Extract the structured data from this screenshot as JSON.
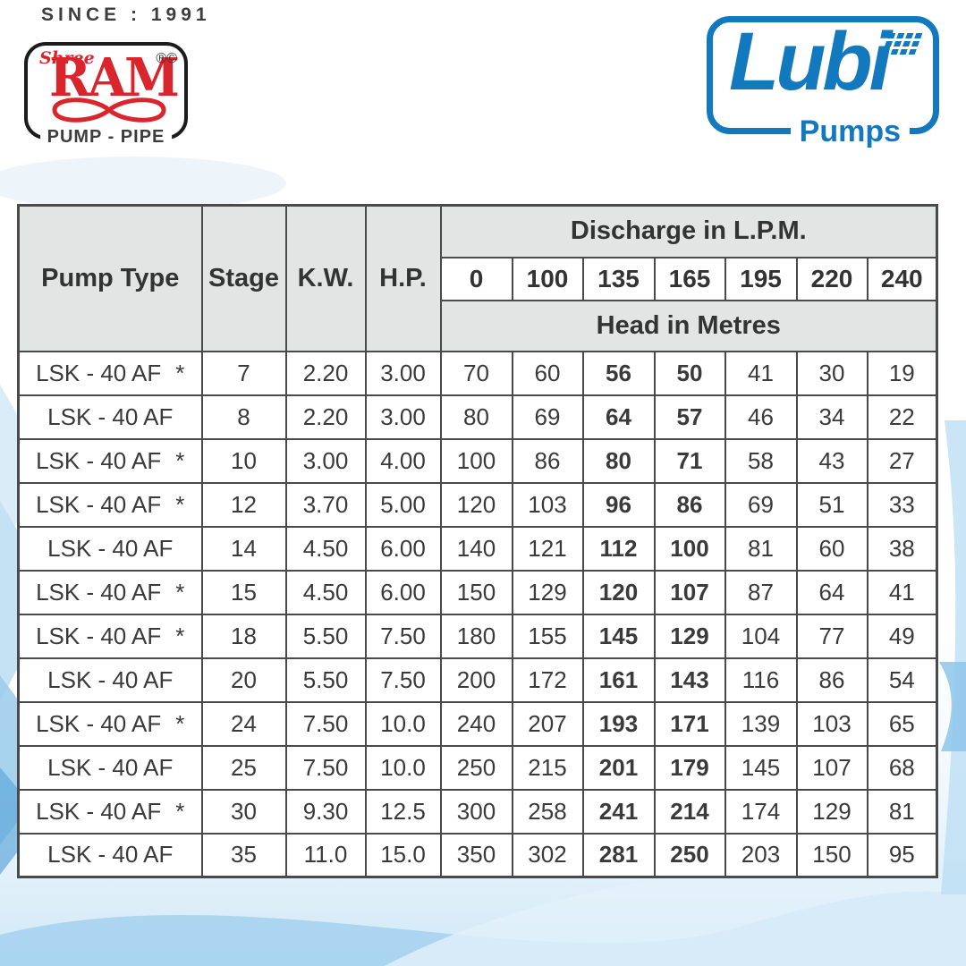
{
  "branding": {
    "since_text": "SINCE : 1991",
    "shree_ram": {
      "prefix": "Shree",
      "name": "RAM",
      "marks": "®©",
      "tagline": "PUMP - PIPE",
      "red": "#d9252c"
    },
    "lubi": {
      "name": "Lubi",
      "tagline": "Pumps",
      "blue": "#1279be"
    }
  },
  "table": {
    "columns": [
      "Pump Type",
      "Stage",
      "K.W.",
      "H.P."
    ],
    "discharge_header": "Discharge in L.P.M.",
    "discharge_values": [
      "0",
      "100",
      "135",
      "165",
      "195",
      "220",
      "240"
    ],
    "head_header": "Head in Metres",
    "emphasized_discharge_indices": [
      2,
      3
    ],
    "rows": [
      {
        "pump_type": "LSK - 40 AF",
        "starred": true,
        "stage": "7",
        "kw": "2.20",
        "hp": "3.00",
        "heads": [
          "70",
          "60",
          "56",
          "50",
          "41",
          "30",
          "19"
        ]
      },
      {
        "pump_type": "LSK - 40 AF",
        "starred": false,
        "stage": "8",
        "kw": "2.20",
        "hp": "3.00",
        "heads": [
          "80",
          "69",
          "64",
          "57",
          "46",
          "34",
          "22"
        ]
      },
      {
        "pump_type": "LSK - 40 AF",
        "starred": true,
        "stage": "10",
        "kw": "3.00",
        "hp": "4.00",
        "heads": [
          "100",
          "86",
          "80",
          "71",
          "58",
          "43",
          "27"
        ]
      },
      {
        "pump_type": "LSK - 40 AF",
        "starred": true,
        "stage": "12",
        "kw": "3.70",
        "hp": "5.00",
        "heads": [
          "120",
          "103",
          "96",
          "86",
          "69",
          "51",
          "33"
        ]
      },
      {
        "pump_type": "LSK - 40 AF",
        "starred": false,
        "stage": "14",
        "kw": "4.50",
        "hp": "6.00",
        "heads": [
          "140",
          "121",
          "112",
          "100",
          "81",
          "60",
          "38"
        ]
      },
      {
        "pump_type": "LSK - 40 AF",
        "starred": true,
        "stage": "15",
        "kw": "4.50",
        "hp": "6.00",
        "heads": [
          "150",
          "129",
          "120",
          "107",
          "87",
          "64",
          "41"
        ]
      },
      {
        "pump_type": "LSK - 40 AF",
        "starred": true,
        "stage": "18",
        "kw": "5.50",
        "hp": "7.50",
        "heads": [
          "180",
          "155",
          "145",
          "129",
          "104",
          "77",
          "49"
        ]
      },
      {
        "pump_type": "LSK - 40 AF",
        "starred": false,
        "stage": "20",
        "kw": "5.50",
        "hp": "7.50",
        "heads": [
          "200",
          "172",
          "161",
          "143",
          "116",
          "86",
          "54"
        ]
      },
      {
        "pump_type": "LSK - 40 AF",
        "starred": true,
        "stage": "24",
        "kw": "7.50",
        "hp": "10.0",
        "heads": [
          "240",
          "207",
          "193",
          "171",
          "139",
          "103",
          "65"
        ]
      },
      {
        "pump_type": "LSK - 40 AF",
        "starred": false,
        "stage": "25",
        "kw": "7.50",
        "hp": "10.0",
        "heads": [
          "250",
          "215",
          "201",
          "179",
          "145",
          "107",
          "68"
        ]
      },
      {
        "pump_type": "LSK - 40 AF",
        "starred": true,
        "stage": "30",
        "kw": "9.30",
        "hp": "12.5",
        "heads": [
          "300",
          "258",
          "241",
          "214",
          "174",
          "129",
          "81"
        ]
      },
      {
        "pump_type": "LSK - 40 AF",
        "starred": false,
        "stage": "35",
        "kw": "11.0",
        "hp": "15.0",
        "heads": [
          "350",
          "302",
          "281",
          "250",
          "203",
          "150",
          "95"
        ]
      }
    ]
  },
  "colors": {
    "header_gray": "#e3e5e5",
    "table_border": "#4a4a4a",
    "text": "#3a3a3a",
    "background_blue": "#bfdff4"
  }
}
